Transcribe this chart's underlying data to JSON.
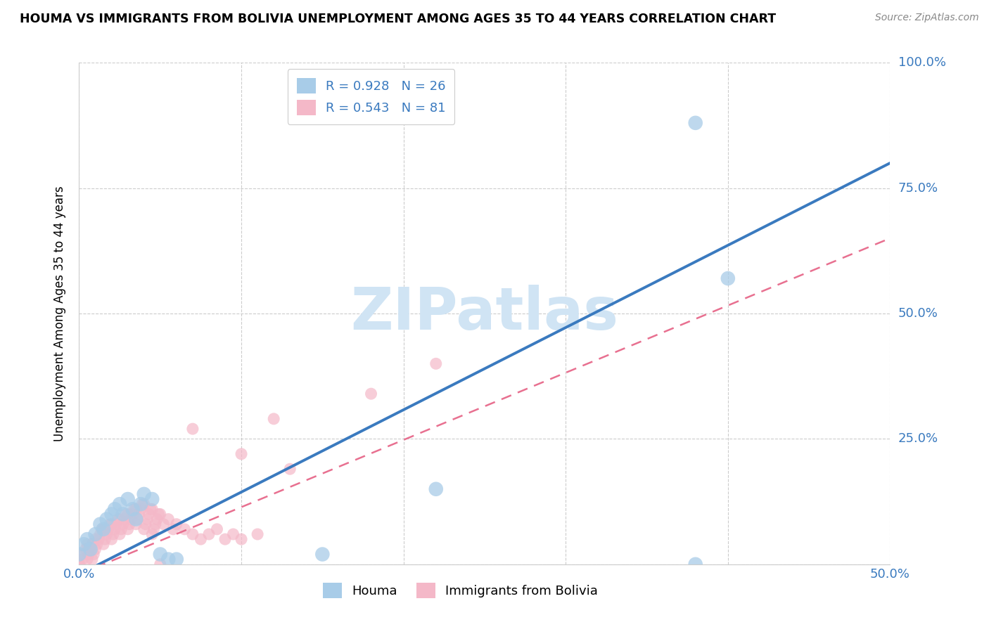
{
  "title": "HOUMA VS IMMIGRANTS FROM BOLIVIA UNEMPLOYMENT AMONG AGES 35 TO 44 YEARS CORRELATION CHART",
  "source": "Source: ZipAtlas.com",
  "ylabel": "Unemployment Among Ages 35 to 44 years",
  "xlim": [
    0.0,
    0.5
  ],
  "ylim": [
    0.0,
    1.0
  ],
  "xticks": [
    0.0,
    0.1,
    0.2,
    0.3,
    0.4,
    0.5
  ],
  "yticks": [
    0.0,
    0.25,
    0.5,
    0.75,
    1.0
  ],
  "xtick_labels": [
    "0.0%",
    "",
    "",
    "",
    "",
    "50.0%"
  ],
  "ytick_labels": [
    "",
    "25.0%",
    "50.0%",
    "75.0%",
    "100.0%"
  ],
  "houma_R": 0.928,
  "houma_N": 26,
  "bolivia_R": 0.543,
  "bolivia_N": 81,
  "houma_color": "#a8cce8",
  "bolivia_color": "#f4b8c8",
  "houma_line_color": "#3a7abf",
  "bolivia_line_color": "#e87090",
  "watermark_color": "#d0e4f4",
  "houma_line": [
    [
      0.0,
      -0.02
    ],
    [
      0.5,
      0.8
    ]
  ],
  "bolivia_line": [
    [
      0.0,
      -0.02
    ],
    [
      0.5,
      0.65
    ]
  ],
  "houma_scatter": [
    [
      0.0,
      0.02
    ],
    [
      0.003,
      0.04
    ],
    [
      0.005,
      0.05
    ],
    [
      0.007,
      0.03
    ],
    [
      0.01,
      0.06
    ],
    [
      0.013,
      0.08
    ],
    [
      0.015,
      0.07
    ],
    [
      0.017,
      0.09
    ],
    [
      0.02,
      0.1
    ],
    [
      0.022,
      0.11
    ],
    [
      0.025,
      0.12
    ],
    [
      0.027,
      0.1
    ],
    [
      0.03,
      0.13
    ],
    [
      0.033,
      0.11
    ],
    [
      0.035,
      0.09
    ],
    [
      0.038,
      0.12
    ],
    [
      0.04,
      0.14
    ],
    [
      0.045,
      0.13
    ],
    [
      0.05,
      0.02
    ],
    [
      0.055,
      0.01
    ],
    [
      0.06,
      0.01
    ],
    [
      0.15,
      0.02
    ],
    [
      0.22,
      0.15
    ],
    [
      0.38,
      0.0
    ],
    [
      0.38,
      0.88
    ],
    [
      0.4,
      0.57
    ]
  ],
  "bolivia_scatter": [
    [
      0.0,
      0.0
    ],
    [
      0.002,
      0.01
    ],
    [
      0.003,
      0.02
    ],
    [
      0.004,
      0.03
    ],
    [
      0.005,
      0.04
    ],
    [
      0.005,
      0.01
    ],
    [
      0.006,
      0.02
    ],
    [
      0.007,
      0.03
    ],
    [
      0.008,
      0.04
    ],
    [
      0.008,
      0.01
    ],
    [
      0.009,
      0.02
    ],
    [
      0.01,
      0.03
    ],
    [
      0.01,
      0.05
    ],
    [
      0.011,
      0.04
    ],
    [
      0.012,
      0.05
    ],
    [
      0.013,
      0.06
    ],
    [
      0.014,
      0.07
    ],
    [
      0.015,
      0.07
    ],
    [
      0.015,
      0.04
    ],
    [
      0.016,
      0.05
    ],
    [
      0.017,
      0.06
    ],
    [
      0.018,
      0.07
    ],
    [
      0.019,
      0.08
    ],
    [
      0.02,
      0.08
    ],
    [
      0.02,
      0.05
    ],
    [
      0.021,
      0.06
    ],
    [
      0.022,
      0.07
    ],
    [
      0.023,
      0.08
    ],
    [
      0.024,
      0.09
    ],
    [
      0.025,
      0.09
    ],
    [
      0.025,
      0.06
    ],
    [
      0.026,
      0.07
    ],
    [
      0.027,
      0.08
    ],
    [
      0.028,
      0.09
    ],
    [
      0.029,
      0.1
    ],
    [
      0.03,
      0.1
    ],
    [
      0.03,
      0.07
    ],
    [
      0.031,
      0.08
    ],
    [
      0.032,
      0.09
    ],
    [
      0.033,
      0.1
    ],
    [
      0.034,
      0.11
    ],
    [
      0.035,
      0.11
    ],
    [
      0.035,
      0.08
    ],
    [
      0.036,
      0.09
    ],
    [
      0.037,
      0.1
    ],
    [
      0.038,
      0.11
    ],
    [
      0.039,
      0.12
    ],
    [
      0.04,
      0.12
    ],
    [
      0.04,
      0.07
    ],
    [
      0.041,
      0.08
    ],
    [
      0.042,
      0.09
    ],
    [
      0.043,
      0.1
    ],
    [
      0.044,
      0.11
    ],
    [
      0.045,
      0.11
    ],
    [
      0.045,
      0.06
    ],
    [
      0.046,
      0.07
    ],
    [
      0.047,
      0.08
    ],
    [
      0.048,
      0.09
    ],
    [
      0.049,
      0.1
    ],
    [
      0.05,
      0.1
    ],
    [
      0.05,
      0.0
    ],
    [
      0.052,
      0.08
    ],
    [
      0.055,
      0.09
    ],
    [
      0.058,
      0.07
    ],
    [
      0.06,
      0.08
    ],
    [
      0.065,
      0.07
    ],
    [
      0.07,
      0.06
    ],
    [
      0.075,
      0.05
    ],
    [
      0.08,
      0.06
    ],
    [
      0.085,
      0.07
    ],
    [
      0.09,
      0.05
    ],
    [
      0.095,
      0.06
    ],
    [
      0.1,
      0.05
    ],
    [
      0.11,
      0.06
    ],
    [
      0.07,
      0.27
    ],
    [
      0.1,
      0.22
    ],
    [
      0.13,
      0.19
    ],
    [
      0.12,
      0.29
    ],
    [
      0.18,
      0.34
    ],
    [
      0.22,
      0.4
    ],
    [
      0.0,
      0.0
    ]
  ]
}
